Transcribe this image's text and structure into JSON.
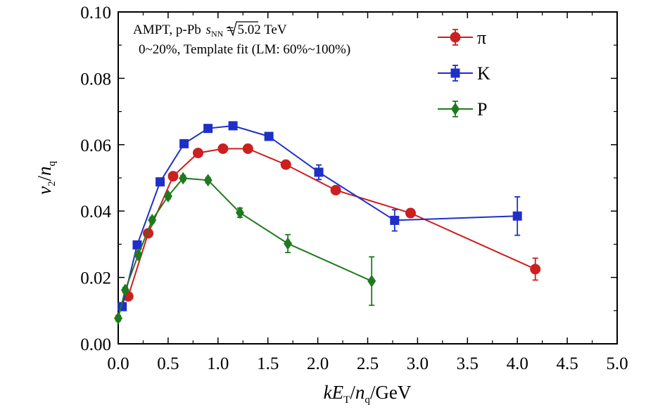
{
  "chart_data": {
    "type": "line",
    "xlabel": "kE_T/n_q/GeV",
    "ylabel": "v_2/n_q",
    "xlim": [
      0.0,
      5.0
    ],
    "ylim": [
      0.0,
      0.1
    ],
    "x_ticks": [
      "0.0",
      "0.5",
      "1.0",
      "1.5",
      "2.0",
      "2.5",
      "3.0",
      "3.5",
      "4.0",
      "4.5",
      "5.0"
    ],
    "y_ticks": [
      "0.00",
      "0.02",
      "0.04",
      "0.06",
      "0.08",
      "0.10"
    ],
    "grid": false,
    "legend_position": "top-right",
    "annotation": {
      "line1_prefix": "AMPT, p-Pb ",
      "line1_sqrt_s": "s",
      "line1_sub": "NN",
      "line1_suffix": " = 5.02 TeV",
      "line2": "0~20%, Template fit (LM: 60%~100%)"
    },
    "series": [
      {
        "name": "π",
        "color": "#cc1f1f",
        "marker": "circle",
        "x": [
          0.1,
          0.3,
          0.55,
          0.8,
          1.05,
          1.3,
          1.68,
          2.18,
          2.93,
          4.18
        ],
        "y": [
          0.0143,
          0.0333,
          0.0505,
          0.0575,
          0.0588,
          0.0588,
          0.054,
          0.0463,
          0.0394,
          0.0225
        ],
        "yerr": [
          0.0008,
          0.0008,
          0.0008,
          0.0008,
          0.0008,
          0.0008,
          0.0008,
          0.0008,
          0.0012,
          0.0033
        ]
      },
      {
        "name": "K",
        "color": "#1f2fc8",
        "marker": "square",
        "x": [
          0.04,
          0.19,
          0.42,
          0.66,
          0.9,
          1.15,
          1.51,
          2.01,
          2.77,
          4.0
        ],
        "y": [
          0.0112,
          0.0298,
          0.0488,
          0.0603,
          0.0649,
          0.0657,
          0.0625,
          0.0517,
          0.0372,
          0.0385
        ],
        "yerr": [
          0.0008,
          0.001,
          0.001,
          0.001,
          0.001,
          0.001,
          0.001,
          0.0022,
          0.0032,
          0.0058
        ]
      },
      {
        "name": "P",
        "color": "#1f7a1f",
        "marker": "diamond",
        "x": [
          0.0,
          0.07,
          0.2,
          0.34,
          0.5,
          0.65,
          0.9,
          1.22,
          1.7,
          2.54
        ],
        "y": [
          0.0077,
          0.0162,
          0.0268,
          0.0373,
          0.0445,
          0.0499,
          0.0493,
          0.0395,
          0.0302,
          0.0189
        ],
        "yerr": [
          0.0008,
          0.0008,
          0.0008,
          0.0008,
          0.0008,
          0.0008,
          0.0008,
          0.0014,
          0.0027,
          0.0073
        ]
      }
    ]
  }
}
